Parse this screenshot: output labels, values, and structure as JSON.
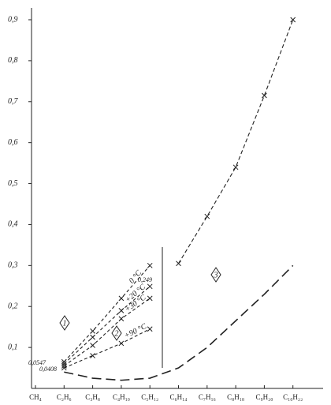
{
  "chart_data": {
    "type": "line",
    "categories": [
      "CH₄",
      "C₂H₆",
      "C₃H₈",
      "C₄H₁₀",
      "C₅H₁₂",
      "C₆H₁₄",
      "C₇H₁₆",
      "C₈H₁₈",
      "C₉H₂₀",
      "C₁₀H₂₂"
    ],
    "series": [
      {
        "name": "0 °C",
        "color": "#222",
        "values": [
          null,
          0.065,
          0.14,
          0.22,
          0.3,
          null,
          null,
          null,
          null,
          null
        ]
      },
      {
        "name": "+20 °C",
        "color": "#222",
        "values": [
          null,
          0.06,
          0.125,
          0.19,
          0.249,
          null,
          null,
          null,
          null,
          null
        ]
      },
      {
        "name": "+30 °C",
        "color": "#222",
        "values": [
          null,
          0.055,
          0.105,
          0.17,
          0.22,
          null,
          null,
          null,
          null,
          null
        ]
      },
      {
        "name": "+90 °C",
        "color": "#222",
        "values": [
          null,
          0.05,
          0.08,
          0.11,
          0.145,
          null,
          null,
          null,
          null,
          null
        ]
      },
      {
        "name": "3",
        "color": "#222",
        "values": [
          null,
          null,
          null,
          null,
          null,
          0.305,
          0.42,
          0.54,
          0.715,
          0.9
        ]
      },
      {
        "name": "2",
        "color": "#222",
        "values": [
          null,
          0.04,
          0.025,
          0.02,
          0.025,
          0.05,
          0.1,
          0.165,
          0.23,
          0.3
        ]
      }
    ],
    "annotations": [
      "0,0547",
      "0,0408",
      "0,249",
      "1"
    ],
    "ylim": [
      0,
      0.9
    ],
    "yticks": [
      {
        "value": 0.1,
        "label": "0,1"
      },
      {
        "value": 0.2,
        "label": "0,2"
      },
      {
        "value": 0.3,
        "label": "0,3"
      },
      {
        "value": 0.4,
        "label": "0,4"
      },
      {
        "value": 0.5,
        "label": "0,5"
      },
      {
        "value": 0.6,
        "label": "0,6"
      },
      {
        "value": 0.7,
        "label": "0,7"
      },
      {
        "value": 0.8,
        "label": "0,8"
      },
      {
        "value": 0.9,
        "label": "0,9"
      }
    ]
  }
}
